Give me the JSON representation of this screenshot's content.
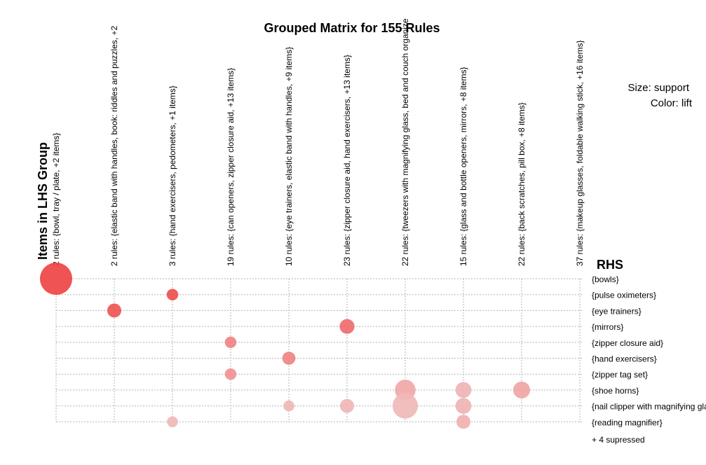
{
  "chart_data": {
    "type": "scatter",
    "title": "Grouped Matrix for 155 Rules",
    "xlabel": "Items in LHS Group",
    "ylabel": "RHS",
    "legend": {
      "size_label": "Size: support",
      "color_label": "Color: lift"
    },
    "lhs_groups": [
      "2 rules: {bowl, tray / plate, +2 items}",
      "2 rules: {elastic band with handles, book: riddles and puzzles, +2",
      "3 rules: {hand exercisers, pedometers, +1 items}",
      "19 rules: {can openers, zipper closure aid, +13 items}",
      "10 rules: {eye trainers, elastic band with handles, +9 items}",
      "23 rules: {zipper closure aid, hand exercisers, +13 items}",
      "22 rules: {tweezers with magnifying glass, bed and couch organize",
      "15 rules: {glass and bottle openers, mirrors, +8 items}",
      "22 rules: {back scratches, pill box, +8 items}",
      "37 rules: {makeup glasses, foldable walking stick, +16 items}"
    ],
    "rhs_items": [
      "{bowls}",
      "{pulse oximeters}",
      "{eye trainers}",
      "{mirrors}",
      "{zipper closure aid}",
      "{hand exercisers}",
      "{zipper tag set}",
      "{shoe horns}",
      "{nail clipper with magnifying glass}",
      "{reading magnifier}"
    ],
    "suppressed_label": "+ 4 supressed",
    "points": [
      {
        "lhs": 0,
        "rhs": 0,
        "support": 1.0,
        "lift": 1.0
      },
      {
        "lhs": 2,
        "rhs": 1,
        "support": 0.05,
        "lift": 0.92
      },
      {
        "lhs": 1,
        "rhs": 2,
        "support": 0.1,
        "lift": 0.88
      },
      {
        "lhs": 5,
        "rhs": 3,
        "support": 0.12,
        "lift": 0.72
      },
      {
        "lhs": 3,
        "rhs": 4,
        "support": 0.05,
        "lift": 0.55
      },
      {
        "lhs": 4,
        "rhs": 5,
        "support": 0.08,
        "lift": 0.55
      },
      {
        "lhs": 3,
        "rhs": 6,
        "support": 0.05,
        "lift": 0.45
      },
      {
        "lhs": 6,
        "rhs": 7,
        "support": 0.32,
        "lift": 0.3
      },
      {
        "lhs": 7,
        "rhs": 7,
        "support": 0.15,
        "lift": 0.22
      },
      {
        "lhs": 8,
        "rhs": 7,
        "support": 0.18,
        "lift": 0.32
      },
      {
        "lhs": 4,
        "rhs": 8,
        "support": 0.04,
        "lift": 0.2
      },
      {
        "lhs": 5,
        "rhs": 8,
        "support": 0.1,
        "lift": 0.2
      },
      {
        "lhs": 6,
        "rhs": 8,
        "support": 0.55,
        "lift": 0.18
      },
      {
        "lhs": 7,
        "rhs": 8,
        "support": 0.15,
        "lift": 0.22
      },
      {
        "lhs": 2,
        "rhs": 9,
        "support": 0.04,
        "lift": 0.18
      },
      {
        "lhs": 7,
        "rhs": 9,
        "support": 0.1,
        "lift": 0.24
      }
    ],
    "color_low": "#f1d3d3",
    "color_high": "#ee4444"
  }
}
